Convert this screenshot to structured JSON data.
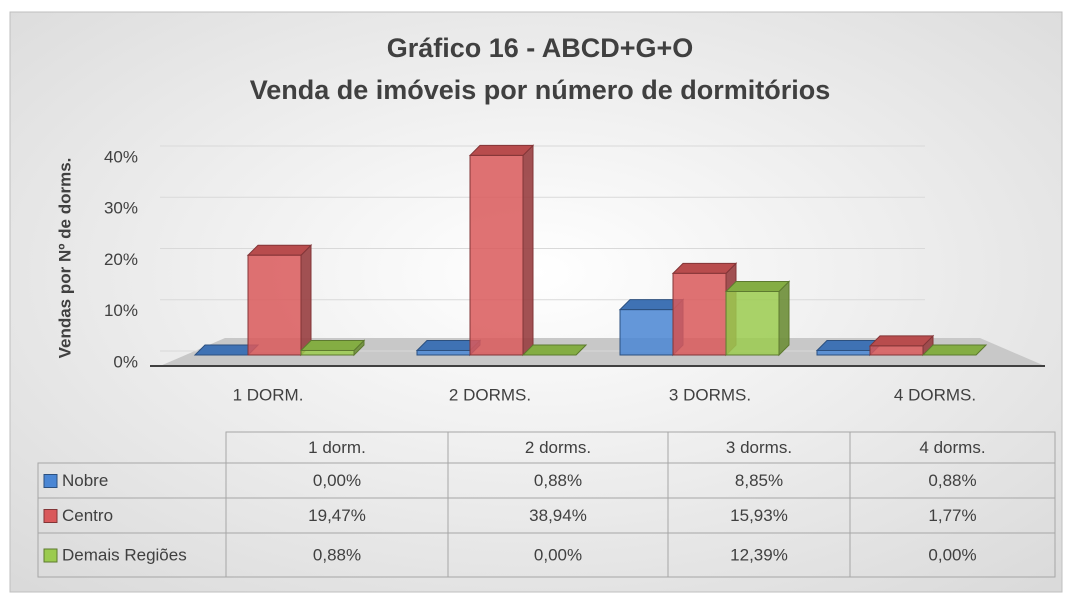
{
  "chart_data": {
    "type": "bar",
    "title": "Gráfico 16 - ABCD+G+O",
    "subtitle": "Venda de imóveis por número de dormitórios",
    "y_label": "Vendas por Nº de dorms.",
    "categories": [
      "1 DORM.",
      "2 DORMS.",
      "3 DORMS.",
      "4 DORMS."
    ],
    "table_header": [
      "1 dorm.",
      "2 dorms.",
      "3 dorms.",
      "4 dorms."
    ],
    "ylim": [
      0,
      40
    ],
    "yticks": [
      {
        "value": 0,
        "label": "0%"
      },
      {
        "value": 10,
        "label": "10%"
      },
      {
        "value": 20,
        "label": "20%"
      },
      {
        "value": 30,
        "label": "30%"
      },
      {
        "value": 40,
        "label": "40%"
      }
    ],
    "grid": true,
    "series": [
      {
        "name": "Nobre",
        "color": "#4a86d4",
        "values": [
          0,
          0.88,
          8.85,
          0.88
        ],
        "value_labels": [
          "0,00%",
          "0,88%",
          "8,85%",
          "0,88%"
        ]
      },
      {
        "name": "Centro",
        "color": "#d9595b",
        "values": [
          19.47,
          38.94,
          15.93,
          1.77
        ],
        "value_labels": [
          "19,47%",
          "38,94%",
          "15,93%",
          "1,77%"
        ]
      },
      {
        "name": "Demais Regiões",
        "color": "#9bcb4f",
        "values": [
          0.88,
          0,
          12.39,
          0
        ],
        "value_labels": [
          "0,88%",
          "0,00%",
          "12,39%",
          "0,00%"
        ]
      }
    ]
  }
}
